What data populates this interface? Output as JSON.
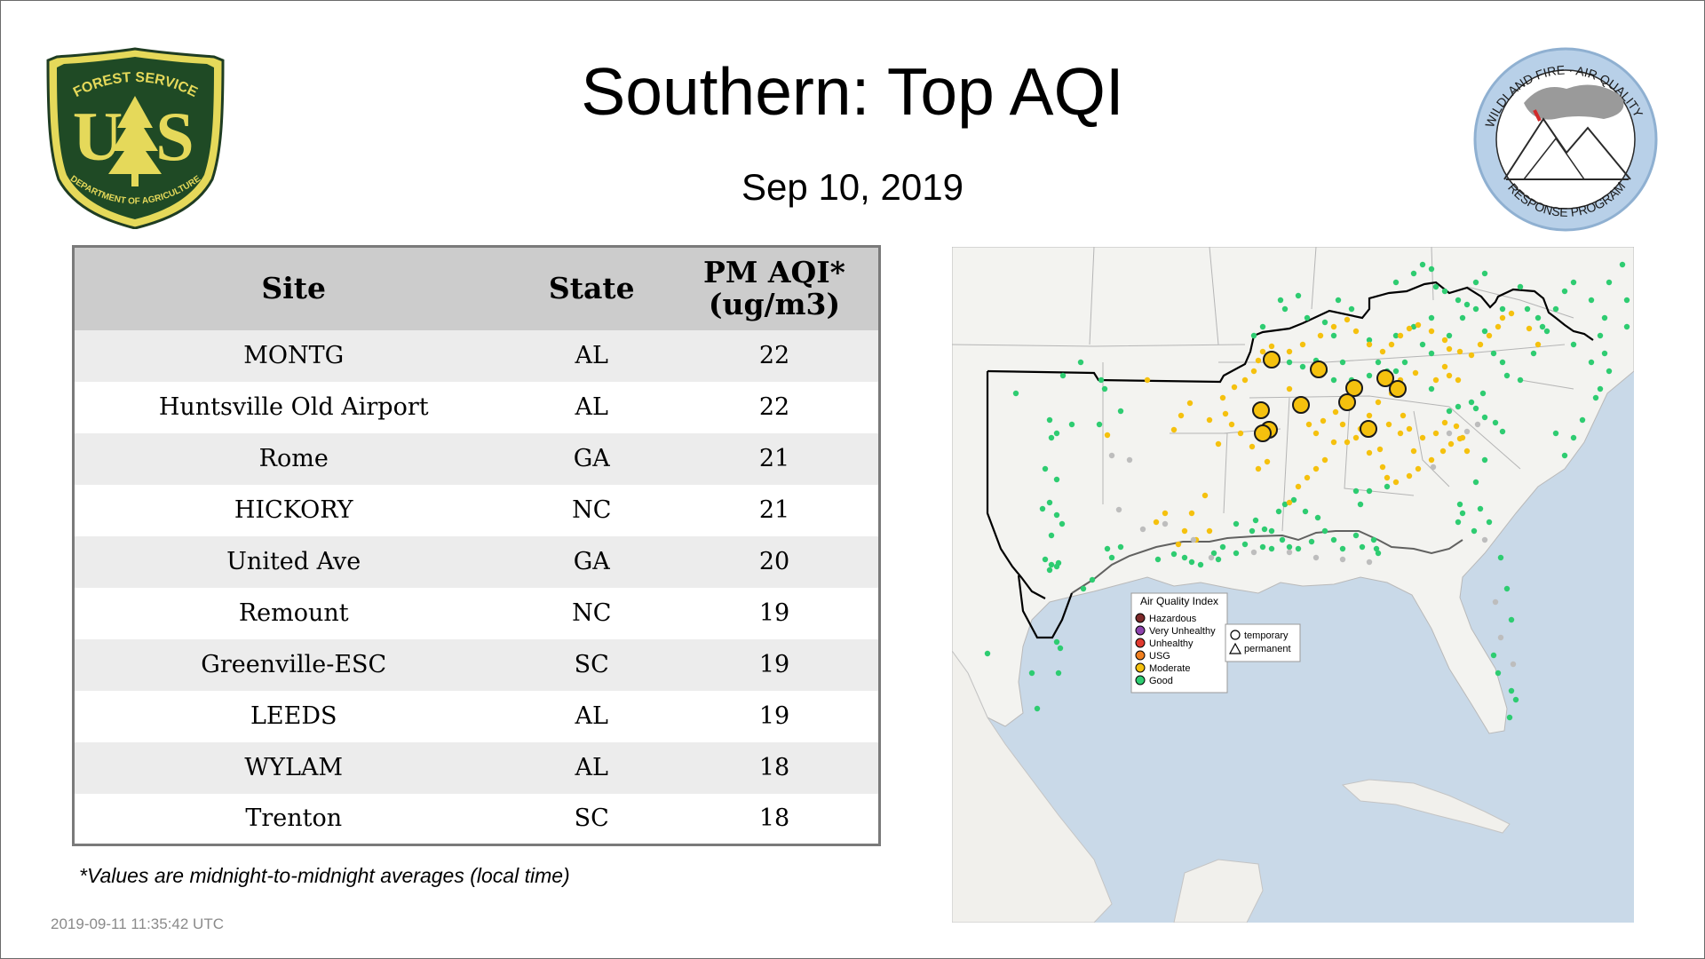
{
  "header": {
    "title": "Southern: Top AQI",
    "date": "Sep 10, 2019"
  },
  "logos": {
    "forest_service": {
      "top_text": "FOREST SERVICE",
      "letters": "U S",
      "bottom_text": "DEPARTMENT OF AGRICULTURE"
    },
    "wildland_fire": {
      "top_text": "WILDLAND FIRE · AIR QUALITY",
      "bottom_text": "RESPONSE PROGRAM"
    }
  },
  "table": {
    "columns": [
      "Site",
      "State",
      "PM AQI*",
      "(ug/m3)"
    ],
    "rows": [
      {
        "site": "MONTG",
        "state": "AL",
        "aqi": "22"
      },
      {
        "site": "Huntsville Old Airport",
        "state": "AL",
        "aqi": "22"
      },
      {
        "site": "Rome",
        "state": "GA",
        "aqi": "21"
      },
      {
        "site": "HICKORY",
        "state": "NC",
        "aqi": "21"
      },
      {
        "site": "United Ave",
        "state": "GA",
        "aqi": "20"
      },
      {
        "site": "Remount",
        "state": "NC",
        "aqi": "19"
      },
      {
        "site": "Greenville-ESC",
        "state": "SC",
        "aqi": "19"
      },
      {
        "site": "LEEDS",
        "state": "AL",
        "aqi": "19"
      },
      {
        "site": "WYLAM",
        "state": "AL",
        "aqi": "18"
      },
      {
        "site": "Trenton",
        "state": "SC",
        "aqi": "18"
      }
    ]
  },
  "footnote": "*Values are midnight-to-midnight averages (local time)",
  "timestamp": "2019-09-11 11:35:42 UTC",
  "map": {
    "legend": {
      "title": "Air Quality Index",
      "items": [
        {
          "label": "Hazardous",
          "color": "#7e2a2a"
        },
        {
          "label": "Very Unhealthy",
          "color": "#8e44ad"
        },
        {
          "label": "Unhealthy",
          "color": "#e03a2f"
        },
        {
          "label": "USG",
          "color": "#f07f1f"
        },
        {
          "label": "Moderate",
          "color": "#f5c10e"
        },
        {
          "label": "Good",
          "color": "#2ecc71"
        }
      ]
    },
    "marker_legend": {
      "items": [
        {
          "label": "temporary",
          "shape": "circle-icon"
        },
        {
          "label": "permanent",
          "shape": "triangle-icon"
        }
      ]
    },
    "colors": {
      "water": "#c9d9e8",
      "land": "#f4f4f2",
      "good": "#2ecc71",
      "moderate": "#f5c10e",
      "no_data": "#bdbdbd"
    }
  }
}
